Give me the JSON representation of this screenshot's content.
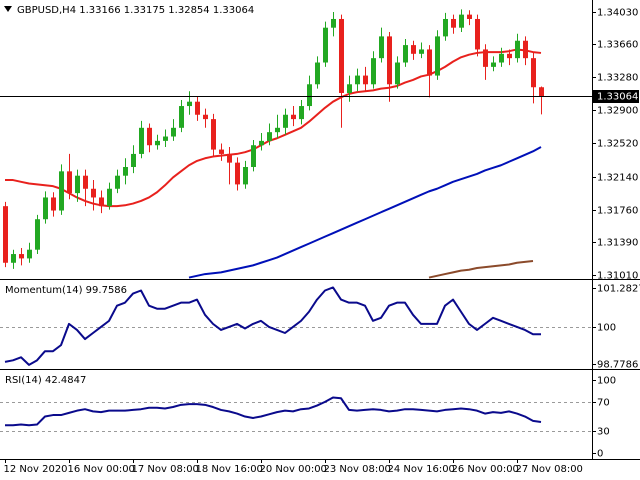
{
  "chart_data": [
    {
      "type": "candlestick",
      "title": "GBPUSD,H4  1.33166 1.33175 1.32854 1.33064",
      "categories": [
        "12 Nov 2020",
        null,
        null,
        null,
        null,
        null,
        null,
        null,
        "16 Nov 00:00",
        null,
        null,
        null,
        null,
        null,
        null,
        null,
        "17 Nov 08:00",
        null,
        null,
        null,
        null,
        null,
        null,
        null,
        "18 Nov 16:00",
        null,
        null,
        null,
        null,
        null,
        null,
        null,
        "20 Nov 00:00",
        null,
        null,
        null,
        null,
        null,
        null,
        null,
        "23 Nov 08:00",
        null,
        null,
        null,
        null,
        null,
        null,
        null,
        "24 Nov 16:00",
        null,
        null,
        null,
        null,
        null,
        null,
        null,
        "26 Nov 00:00",
        null,
        null,
        null,
        null,
        null,
        null,
        null,
        "27 Nov 08:00",
        null,
        null,
        null
      ],
      "open": [
        1.318,
        1.3115,
        1.3125,
        1.312,
        1.313,
        1.3165,
        1.319,
        1.3175,
        1.322,
        1.3195,
        1.3215,
        1.32,
        1.319,
        1.318,
        1.32,
        1.3215,
        1.3225,
        1.324,
        1.327,
        1.325,
        1.3255,
        1.326,
        1.327,
        1.3295,
        1.33,
        1.3285,
        1.328,
        1.3245,
        1.324,
        1.323,
        1.3205,
        1.3225,
        1.325,
        1.3255,
        1.3265,
        1.327,
        1.3285,
        1.328,
        1.3295,
        1.332,
        1.3345,
        1.3385,
        1.3395,
        1.331,
        1.332,
        1.333,
        1.332,
        1.335,
        1.3375,
        1.332,
        1.3345,
        1.3365,
        1.3355,
        1.336,
        1.333,
        1.3375,
        1.3395,
        1.3385,
        1.34,
        1.3395,
        1.336,
        1.334,
        1.3345,
        1.3355,
        1.335,
        1.337,
        1.335,
        1.33166
      ],
      "high": [
        1.3185,
        1.313,
        1.3132,
        1.3138,
        1.317,
        1.3197,
        1.3196,
        1.3228,
        1.324,
        1.3222,
        1.3222,
        1.321,
        1.3198,
        1.3207,
        1.3222,
        1.3235,
        1.325,
        1.3278,
        1.3275,
        1.3262,
        1.3268,
        1.328,
        1.3302,
        1.3312,
        1.3306,
        1.3292,
        1.3286,
        1.3252,
        1.3248,
        1.3236,
        1.3232,
        1.3256,
        1.3264,
        1.3275,
        1.3285,
        1.3292,
        1.3295,
        1.3302,
        1.333,
        1.3352,
        1.3392,
        1.3403,
        1.34,
        1.333,
        1.3338,
        1.334,
        1.3358,
        1.3385,
        1.338,
        1.3352,
        1.3372,
        1.337,
        1.3368,
        1.3365,
        1.3382,
        1.3402,
        1.34,
        1.3406,
        1.3405,
        1.34,
        1.3366,
        1.3352,
        1.3362,
        1.336,
        1.3378,
        1.3375,
        1.3356,
        1.33175
      ],
      "low": [
        1.311,
        1.3108,
        1.3112,
        1.3115,
        1.3125,
        1.316,
        1.3168,
        1.317,
        1.3188,
        1.3185,
        1.318,
        1.3175,
        1.3172,
        1.3176,
        1.3195,
        1.3205,
        1.3218,
        1.3235,
        1.3242,
        1.3245,
        1.3248,
        1.3255,
        1.3265,
        1.3285,
        1.3278,
        1.327,
        1.3238,
        1.3232,
        1.3205,
        1.3198,
        1.32,
        1.322,
        1.3244,
        1.325,
        1.3258,
        1.3262,
        1.3272,
        1.3274,
        1.329,
        1.3315,
        1.334,
        1.3375,
        1.327,
        1.33,
        1.3312,
        1.3312,
        1.3315,
        1.3345,
        1.33,
        1.3315,
        1.334,
        1.3348,
        1.335,
        1.3305,
        1.3325,
        1.337,
        1.3378,
        1.338,
        1.3388,
        1.3352,
        1.3325,
        1.3335,
        1.334,
        1.3342,
        1.3345,
        1.3342,
        1.3298,
        1.32854
      ],
      "close": [
        1.3115,
        1.3125,
        1.312,
        1.313,
        1.3165,
        1.319,
        1.3175,
        1.322,
        1.3195,
        1.3215,
        1.32,
        1.319,
        1.318,
        1.32,
        1.3215,
        1.3225,
        1.324,
        1.327,
        1.325,
        1.3255,
        1.326,
        1.327,
        1.3295,
        1.33,
        1.3285,
        1.328,
        1.3245,
        1.324,
        1.323,
        1.3205,
        1.3225,
        1.325,
        1.3255,
        1.3265,
        1.327,
        1.3285,
        1.328,
        1.3295,
        1.332,
        1.3345,
        1.3385,
        1.3395,
        1.331,
        1.332,
        1.333,
        1.332,
        1.335,
        1.3375,
        1.332,
        1.3345,
        1.3365,
        1.3355,
        1.336,
        1.333,
        1.3375,
        1.3395,
        1.3385,
        1.34,
        1.3395,
        1.336,
        1.334,
        1.3345,
        1.3355,
        1.335,
        1.337,
        1.335,
        1.33166,
        1.33064
      ],
      "up_color": "#22a822",
      "down_color": "#e8211d",
      "lines": [
        {
          "color": "#e8211d",
          "values": [
            1.321,
            1.321,
            1.3208,
            1.3206,
            1.3205,
            1.3204,
            1.3203,
            1.32,
            1.3195,
            1.319,
            1.3186,
            1.3183,
            1.3181,
            1.318,
            1.318,
            1.3181,
            1.3183,
            1.3186,
            1.319,
            1.3196,
            1.3204,
            1.3213,
            1.322,
            1.3227,
            1.3232,
            1.3235,
            1.3237,
            1.3238,
            1.3239,
            1.324,
            1.3242,
            1.3245,
            1.325,
            1.3255,
            1.3258,
            1.3262,
            1.3266,
            1.327,
            1.3277,
            1.3285,
            1.3293,
            1.33,
            1.3305,
            1.3309,
            1.3311,
            1.3312,
            1.3313,
            1.3315,
            1.3316,
            1.3318,
            1.3322,
            1.3325,
            1.3329,
            1.3331,
            1.3335,
            1.334,
            1.3346,
            1.3351,
            1.3354,
            1.3356,
            1.3357,
            1.3357,
            1.3357,
            1.3358,
            1.336,
            1.3359,
            1.3357,
            1.3356
          ]
        },
        {
          "color": "#0010b8",
          "values": [
            null,
            null,
            null,
            null,
            null,
            null,
            null,
            null,
            null,
            null,
            null,
            null,
            null,
            null,
            null,
            null,
            null,
            null,
            null,
            null,
            null,
            null,
            null,
            1.3098,
            1.31,
            1.3102,
            1.3103,
            1.3104,
            1.3106,
            1.3108,
            1.311,
            1.3112,
            1.3115,
            1.3118,
            1.3121,
            1.3125,
            1.3129,
            1.3133,
            1.3137,
            1.3141,
            1.3145,
            1.3149,
            1.3153,
            1.3157,
            1.3161,
            1.3165,
            1.3169,
            1.3173,
            1.3177,
            1.3181,
            1.3185,
            1.3189,
            1.3193,
            1.3197,
            1.32,
            1.3204,
            1.3208,
            1.3211,
            1.3214,
            1.3217,
            1.3221,
            1.3224,
            1.3227,
            1.3231,
            1.3235,
            1.3239,
            1.3243,
            1.3248
          ]
        },
        {
          "color": "#8b4a2b",
          "values": [
            null,
            null,
            null,
            null,
            null,
            null,
            null,
            null,
            null,
            null,
            null,
            null,
            null,
            null,
            null,
            null,
            null,
            null,
            null,
            null,
            null,
            null,
            null,
            null,
            null,
            null,
            null,
            null,
            null,
            null,
            null,
            null,
            null,
            null,
            null,
            null,
            null,
            null,
            null,
            null,
            null,
            null,
            null,
            null,
            null,
            null,
            null,
            null,
            null,
            null,
            null,
            null,
            null,
            1.3098,
            1.31,
            1.3102,
            1.3104,
            1.3106,
            1.3107,
            1.3109,
            1.311,
            1.3111,
            1.3112,
            1.3113,
            1.3115,
            1.3116,
            1.3117
          ]
        }
      ],
      "ylim": [
        1.30975,
        1.34168
      ],
      "yticks": [
        {
          "value": 1.3403,
          "label": "1.34030"
        },
        {
          "value": 1.3366,
          "label": "1.33660"
        },
        {
          "value": 1.3328,
          "label": "1.33280"
        },
        {
          "value": 1.329,
          "label": "1.32900"
        },
        {
          "value": 1.3252,
          "label": "1.32520"
        },
        {
          "value": 1.3214,
          "label": "1.32140"
        },
        {
          "value": 1.3176,
          "label": "1.31760"
        },
        {
          "value": 1.3139,
          "label": "1.31390"
        },
        {
          "value": 1.3101,
          "label": "1.31010"
        }
      ]
    },
    {
      "type": "line",
      "title": "Momentum(14) 99.7586",
      "color": "#0a0a8c",
      "values": [
        98.85,
        98.9,
        99.0,
        98.75,
        98.9,
        99.2,
        99.2,
        99.4,
        100.1,
        99.9,
        99.6,
        99.8,
        100.0,
        100.2,
        100.7,
        100.8,
        101.1,
        101.2,
        100.7,
        100.6,
        100.6,
        100.7,
        100.8,
        100.8,
        100.9,
        100.4,
        100.1,
        99.9,
        100.0,
        100.1,
        99.95,
        100.1,
        100.2,
        100.0,
        99.9,
        99.8,
        100.0,
        100.2,
        100.5,
        100.9,
        101.2,
        101.3,
        100.9,
        100.8,
        100.8,
        100.7,
        100.2,
        100.3,
        100.7,
        100.8,
        100.8,
        100.4,
        100.1,
        100.1,
        100.1,
        100.7,
        100.9,
        100.5,
        100.1,
        99.9,
        100.1,
        100.3,
        100.2,
        100.1,
        100.0,
        99.9,
        99.76,
        99.7586
      ],
      "ylim": [
        98.647,
        101.513
      ],
      "yticks": [
        101.2827,
        100,
        98.7786
      ],
      "levels": [
        100
      ]
    },
    {
      "type": "line",
      "title": "RSI(14) 42.4847",
      "color": "#0a0a8c",
      "values": [
        38,
        38,
        39,
        38,
        39,
        50,
        52,
        52,
        55,
        58,
        60,
        57,
        56,
        58,
        58,
        58,
        59,
        60,
        62,
        62,
        61,
        63,
        66,
        67,
        67,
        66,
        63,
        59,
        57,
        54,
        50,
        48,
        50,
        53,
        56,
        58,
        57,
        60,
        61,
        65,
        70,
        76,
        75,
        59,
        58,
        59,
        60,
        59,
        57,
        58,
        60,
        60,
        59,
        58,
        57,
        59,
        60,
        61,
        60,
        58,
        54,
        56,
        55,
        57,
        54,
        50,
        44,
        42.4847
      ],
      "ylim": [
        -6.8,
        112.3
      ],
      "yticks": [
        100,
        70,
        30,
        0
      ],
      "levels": [
        70,
        30
      ]
    }
  ]
}
